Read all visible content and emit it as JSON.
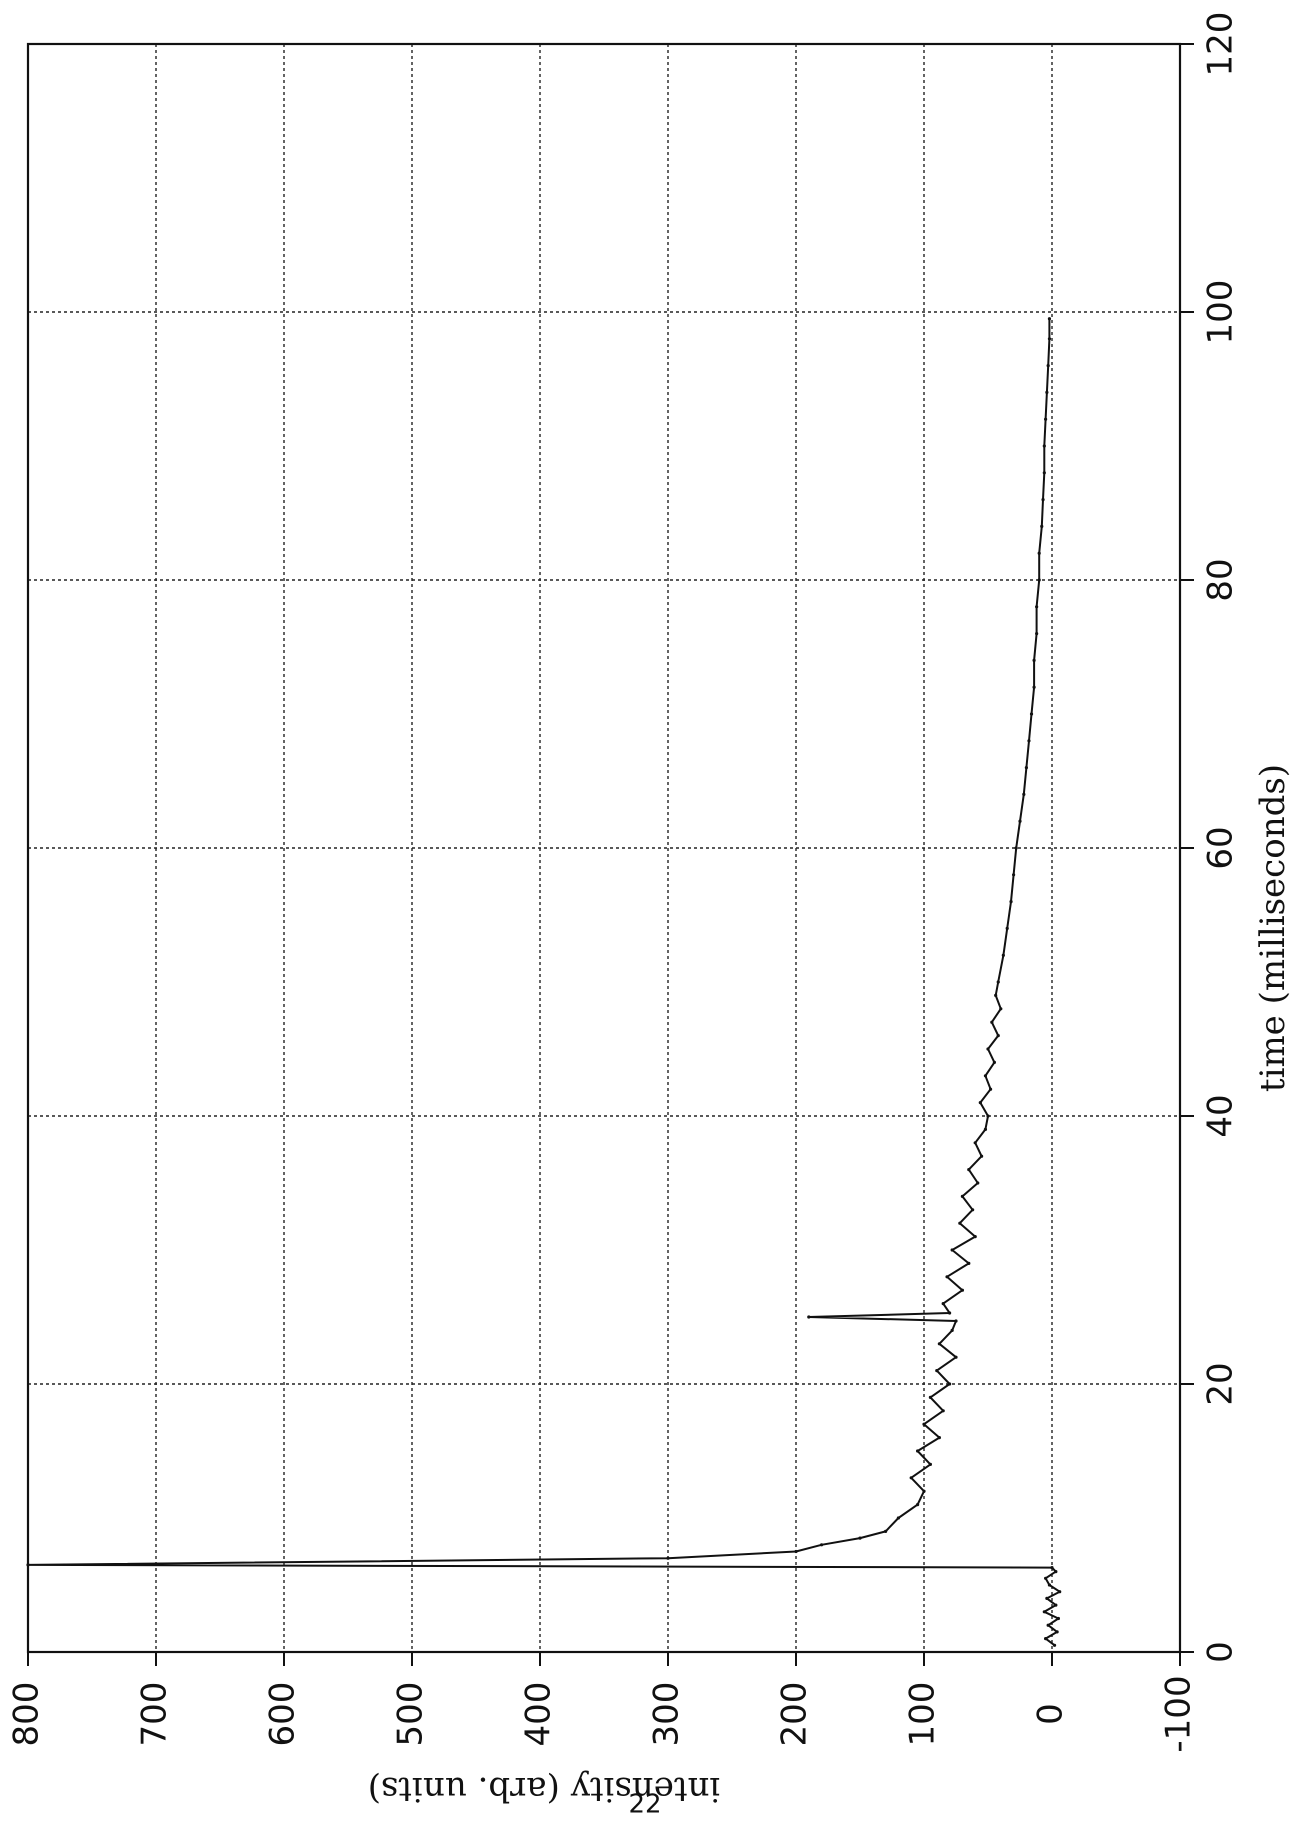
{
  "page_number": "22",
  "chart_data": {
    "type": "line",
    "orientation": "rotated 90° clockwise (time axis vertical, intensity axis horizontal)",
    "title": "",
    "xlabel": "time (milliseconds)",
    "ylabel": "intensity (arb. units)",
    "xlim": [
      0,
      120
    ],
    "ylim": [
      -100,
      800
    ],
    "x_ticks": [
      0,
      20,
      40,
      60,
      80,
      100,
      120
    ],
    "y_ticks": [
      -100,
      0,
      100,
      200,
      300,
      400,
      500,
      600,
      700,
      800
    ],
    "x_tick_labels": [
      "0",
      "20",
      "40",
      "60",
      "80",
      "100",
      "120"
    ],
    "y_tick_labels": [
      "-100",
      "0",
      "100",
      "200",
      "300",
      "400",
      "500",
      "600",
      "700",
      "800"
    ],
    "grid": true,
    "legend": "none",
    "line_color": "#111111",
    "series": [
      {
        "values_note": "baseline noise 0–6 ms near 0; flash to ~800 at ~6.3 ms; decay to ~100 by ~12 ms; spike to ~190 at ~25 ms; noisy decay toward ~0 by ~100 ms",
        "x": [
          0.5,
          1.0,
          1.5,
          2.0,
          2.5,
          3.0,
          3.5,
          4.0,
          4.5,
          5.0,
          5.5,
          6.0,
          6.3,
          6.5,
          7.0,
          7.5,
          8.0,
          8.5,
          9.0,
          10.0,
          11.0,
          12.0,
          13.0,
          14.0,
          15.0,
          16.0,
          17.0,
          18.0,
          19.0,
          20.0,
          21.0,
          22.0,
          23.0,
          24.0,
          24.7,
          25.0,
          25.3,
          26.0,
          27.0,
          28.0,
          29.0,
          30.0,
          31.0,
          32.0,
          33.0,
          34.0,
          35.0,
          36.0,
          37.0,
          38.0,
          39.0,
          40.0,
          41.0,
          42.0,
          43.0,
          44.0,
          45.0,
          46.0,
          47.0,
          48.0,
          49.0,
          50.0,
          52.0,
          54.0,
          56.0,
          58.0,
          60.0,
          62.0,
          64.0,
          66.0,
          68.0,
          70.0,
          72.0,
          74.0,
          76.0,
          78.0,
          80.0,
          82.0,
          84.0,
          86.0,
          88.0,
          90.0,
          92.0,
          94.0,
          96.0,
          98.0,
          99.5
        ],
        "y": [
          -2,
          5,
          -4,
          3,
          -5,
          6,
          -3,
          4,
          -6,
          2,
          5,
          -3,
          0,
          800,
          300,
          200,
          180,
          150,
          130,
          120,
          105,
          100,
          110,
          95,
          105,
          88,
          100,
          85,
          95,
          80,
          90,
          75,
          88,
          78,
          75,
          190,
          80,
          85,
          70,
          82,
          65,
          78,
          60,
          72,
          62,
          70,
          58,
          65,
          55,
          60,
          52,
          50,
          56,
          48,
          52,
          45,
          50,
          42,
          47,
          40,
          44,
          42,
          38,
          35,
          32,
          30,
          28,
          25,
          22,
          20,
          18,
          16,
          14,
          14,
          12,
          12,
          10,
          10,
          8,
          7,
          6,
          6,
          5,
          4,
          3,
          2,
          2
        ]
      }
    ]
  }
}
